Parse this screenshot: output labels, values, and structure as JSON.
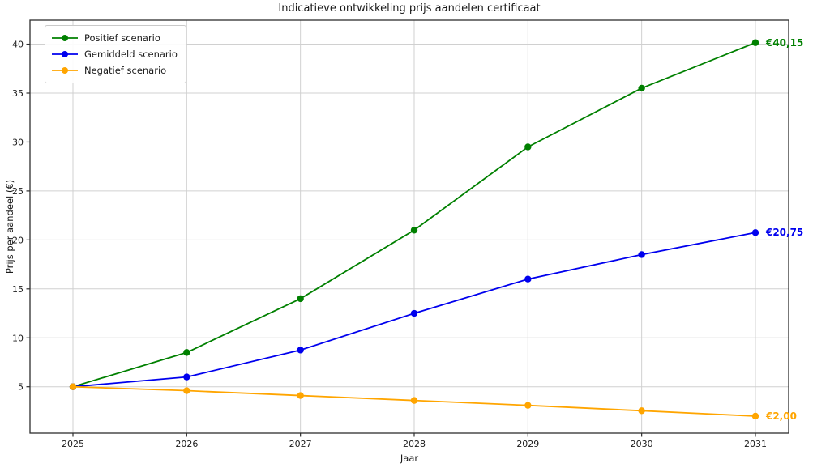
{
  "chart_data": {
    "type": "line",
    "title": "Indicatieve ontwikkeling prijs aandelen certificaat",
    "xlabel": "Jaar",
    "ylabel": "Prijs per aandeel (€)",
    "x": [
      2025,
      2026,
      2027,
      2028,
      2029,
      2030,
      2031
    ],
    "y_ticks": [
      5,
      10,
      15,
      20,
      25,
      30,
      35,
      40
    ],
    "ylim": [
      0.3,
      42.7
    ],
    "xlim": [
      2024.62,
      2031.3
    ],
    "grid": true,
    "grid_color": "#d0d0d0",
    "legend_position": "upper-left",
    "legend_entries": [
      "Positief scenario",
      "Gemiddeld scenario",
      "Negatief scenario"
    ],
    "series": [
      {
        "name": "Positief scenario",
        "color": "#008000",
        "values": [
          5.0,
          8.5,
          14.0,
          21.0,
          29.5,
          35.5,
          40.15
        ],
        "end_label": "€40,15"
      },
      {
        "name": "Gemiddeld scenario",
        "color": "#0000ee",
        "values": [
          5.0,
          6.0,
          8.75,
          12.5,
          16.0,
          18.5,
          20.75
        ],
        "end_label": "€20,75"
      },
      {
        "name": "Negatief scenario",
        "color": "#ffa500",
        "values": [
          5.0,
          4.6,
          4.1,
          3.6,
          3.1,
          2.55,
          2.0
        ],
        "end_label": "€2,00"
      }
    ]
  }
}
